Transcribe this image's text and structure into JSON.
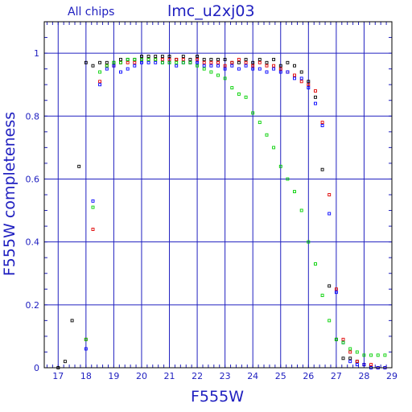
{
  "chart_data": {
    "type": "scatter",
    "title": "lmc_u2xj03",
    "subtitle": "All chips",
    "xlabel": "F555W",
    "ylabel": "F555W completeness",
    "xlim": [
      16.5,
      29
    ],
    "ylim": [
      0,
      1.1
    ],
    "grid": true,
    "x_ticks": [
      "17",
      "18",
      "19",
      "20",
      "21",
      "22",
      "23",
      "24",
      "25",
      "26",
      "27",
      "28",
      "29"
    ],
    "y_ticks": [
      "0",
      "0.2",
      "0.4",
      "0.6",
      "0.8",
      "1"
    ],
    "colors": {
      "axes": "#2020c0",
      "frame": "#000000",
      "black": "#000000",
      "red": "#e00000",
      "blue": "#0000ff",
      "green": "#00d000"
    },
    "series": [
      {
        "color": "black",
        "points": [
          [
            17.0,
            0.0
          ],
          [
            17.25,
            0.02
          ],
          [
            17.5,
            0.15
          ],
          [
            17.75,
            0.64
          ],
          [
            18.0,
            0.97
          ],
          [
            18.25,
            0.96
          ],
          [
            18.5,
            0.97
          ],
          [
            18.75,
            0.97
          ],
          [
            19.0,
            0.97
          ],
          [
            19.25,
            0.98
          ],
          [
            19.5,
            0.98
          ],
          [
            19.75,
            0.98
          ],
          [
            20.0,
            0.99
          ],
          [
            20.25,
            0.99
          ],
          [
            20.5,
            0.99
          ],
          [
            20.75,
            0.99
          ],
          [
            21.0,
            0.99
          ],
          [
            21.25,
            0.98
          ],
          [
            21.5,
            0.99
          ],
          [
            21.75,
            0.98
          ],
          [
            22.0,
            0.99
          ],
          [
            22.25,
            0.98
          ],
          [
            22.5,
            0.98
          ],
          [
            22.75,
            0.98
          ],
          [
            23.0,
            0.98
          ],
          [
            23.25,
            0.97
          ],
          [
            23.5,
            0.97
          ],
          [
            23.75,
            0.98
          ],
          [
            24.0,
            0.97
          ],
          [
            24.25,
            0.98
          ],
          [
            24.5,
            0.97
          ],
          [
            24.75,
            0.98
          ],
          [
            25.0,
            0.96
          ],
          [
            25.25,
            0.97
          ],
          [
            25.5,
            0.96
          ],
          [
            25.75,
            0.94
          ],
          [
            26.0,
            0.91
          ],
          [
            26.25,
            0.86
          ],
          [
            26.5,
            0.63
          ],
          [
            26.75,
            0.26
          ],
          [
            27.0,
            0.09
          ],
          [
            27.25,
            0.03
          ],
          [
            27.5,
            0.03
          ],
          [
            27.75,
            0.02
          ],
          [
            28.0,
            0.01
          ],
          [
            28.25,
            0.0
          ],
          [
            28.5,
            0.0
          ],
          [
            28.75,
            0.0
          ]
        ]
      },
      {
        "color": "red",
        "points": [
          [
            18.0,
            0.09
          ],
          [
            18.25,
            0.44
          ],
          [
            18.5,
            0.91
          ],
          [
            18.75,
            0.96
          ],
          [
            19.0,
            0.96
          ],
          [
            19.25,
            0.97
          ],
          [
            19.5,
            0.97
          ],
          [
            19.75,
            0.97
          ],
          [
            20.0,
            0.98
          ],
          [
            20.25,
            0.98
          ],
          [
            20.5,
            0.98
          ],
          [
            20.75,
            0.98
          ],
          [
            21.0,
            0.98
          ],
          [
            21.25,
            0.98
          ],
          [
            21.5,
            0.98
          ],
          [
            21.75,
            0.97
          ],
          [
            22.0,
            0.98
          ],
          [
            22.25,
            0.97
          ],
          [
            22.5,
            0.97
          ],
          [
            22.75,
            0.97
          ],
          [
            23.0,
            0.96
          ],
          [
            23.25,
            0.97
          ],
          [
            23.5,
            0.98
          ],
          [
            23.75,
            0.97
          ],
          [
            24.0,
            0.96
          ],
          [
            24.25,
            0.97
          ],
          [
            24.5,
            0.96
          ],
          [
            24.75,
            0.96
          ],
          [
            25.0,
            0.95
          ],
          [
            25.25,
            0.94
          ],
          [
            25.5,
            0.93
          ],
          [
            25.75,
            0.91
          ],
          [
            26.0,
            0.9
          ],
          [
            26.25,
            0.88
          ],
          [
            26.5,
            0.78
          ],
          [
            26.75,
            0.55
          ],
          [
            27.0,
            0.25
          ],
          [
            27.25,
            0.09
          ],
          [
            27.5,
            0.05
          ],
          [
            27.75,
            0.02
          ],
          [
            28.0,
            0.01
          ],
          [
            28.25,
            0.01
          ],
          [
            28.5,
            0.0
          ],
          [
            28.75,
            0.0
          ]
        ]
      },
      {
        "color": "blue",
        "points": [
          [
            18.0,
            0.06
          ],
          [
            18.25,
            0.53
          ],
          [
            18.5,
            0.9
          ],
          [
            18.75,
            0.95
          ],
          [
            19.0,
            0.96
          ],
          [
            19.25,
            0.94
          ],
          [
            19.5,
            0.95
          ],
          [
            19.75,
            0.96
          ],
          [
            20.0,
            0.97
          ],
          [
            20.25,
            0.97
          ],
          [
            20.5,
            0.97
          ],
          [
            20.75,
            0.97
          ],
          [
            21.0,
            0.97
          ],
          [
            21.25,
            0.96
          ],
          [
            21.5,
            0.97
          ],
          [
            21.75,
            0.97
          ],
          [
            22.0,
            0.97
          ],
          [
            22.25,
            0.96
          ],
          [
            22.5,
            0.96
          ],
          [
            22.75,
            0.96
          ],
          [
            23.0,
            0.95
          ],
          [
            23.25,
            0.96
          ],
          [
            23.5,
            0.95
          ],
          [
            23.75,
            0.96
          ],
          [
            24.0,
            0.95
          ],
          [
            24.25,
            0.95
          ],
          [
            24.5,
            0.94
          ],
          [
            24.75,
            0.95
          ],
          [
            25.0,
            0.94
          ],
          [
            25.25,
            0.94
          ],
          [
            25.5,
            0.92
          ],
          [
            25.75,
            0.92
          ],
          [
            26.0,
            0.89
          ],
          [
            26.25,
            0.84
          ],
          [
            26.5,
            0.77
          ],
          [
            26.75,
            0.49
          ],
          [
            27.0,
            0.24
          ],
          [
            27.25,
            0.08
          ],
          [
            27.5,
            0.02
          ],
          [
            27.75,
            0.01
          ],
          [
            28.0,
            0.01
          ],
          [
            28.25,
            0.0
          ],
          [
            28.5,
            0.0
          ],
          [
            28.75,
            0.0
          ]
        ]
      },
      {
        "color": "green",
        "points": [
          [
            18.0,
            0.09
          ],
          [
            18.25,
            0.51
          ],
          [
            18.5,
            0.94
          ],
          [
            18.75,
            0.96
          ],
          [
            19.0,
            0.97
          ],
          [
            19.25,
            0.97
          ],
          [
            19.5,
            0.98
          ],
          [
            19.75,
            0.98
          ],
          [
            20.0,
            0.98
          ],
          [
            20.25,
            0.98
          ],
          [
            20.5,
            0.98
          ],
          [
            20.75,
            0.97
          ],
          [
            21.0,
            0.97
          ],
          [
            21.25,
            0.97
          ],
          [
            21.5,
            0.97
          ],
          [
            21.75,
            0.97
          ],
          [
            22.0,
            0.96
          ],
          [
            22.25,
            0.95
          ],
          [
            22.5,
            0.94
          ],
          [
            22.75,
            0.93
          ],
          [
            23.0,
            0.92
          ],
          [
            23.25,
            0.89
          ],
          [
            23.5,
            0.87
          ],
          [
            23.75,
            0.86
          ],
          [
            24.0,
            0.81
          ],
          [
            24.25,
            0.78
          ],
          [
            24.5,
            0.74
          ],
          [
            24.75,
            0.7
          ],
          [
            25.0,
            0.64
          ],
          [
            25.25,
            0.6
          ],
          [
            25.5,
            0.56
          ],
          [
            25.75,
            0.5
          ],
          [
            26.0,
            0.4
          ],
          [
            26.25,
            0.33
          ],
          [
            26.5,
            0.23
          ],
          [
            26.75,
            0.15
          ],
          [
            27.0,
            0.09
          ],
          [
            27.25,
            0.08
          ],
          [
            27.5,
            0.06
          ],
          [
            27.75,
            0.05
          ],
          [
            28.0,
            0.04
          ],
          [
            28.25,
            0.04
          ],
          [
            28.5,
            0.04
          ],
          [
            28.75,
            0.04
          ]
        ]
      }
    ]
  }
}
